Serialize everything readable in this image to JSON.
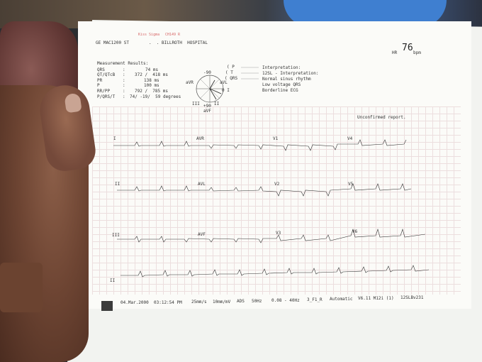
{
  "header": {
    "device": "GE MAC1200 ST",
    "dots": ".  .",
    "hospital": "BILLROTH  HOSPITAL",
    "logo_left": "Kiss Sigma",
    "logo_right": "CH149 R",
    "hr_label": "HR",
    "hr_value": "76",
    "hr_unit": "bpm"
  },
  "measurements": {
    "title": "Measurement Results:",
    "rows": [
      {
        "label": "QRS",
        "sep": ":",
        "value": "74 ms"
      },
      {
        "label": "QT/QTcB",
        "sep": ":",
        "value": "372 /  418 ms"
      },
      {
        "label": "PR",
        "sep": ":",
        "value": "138 ms"
      },
      {
        "label": "P",
        "sep": ":",
        "value": "100 ms"
      },
      {
        "label": "RR/PP",
        "sep": ":",
        "value": "792 /  785 ms"
      },
      {
        "label": "P/QRS/T",
        "sep": ":",
        "value": "74/ -19/  59 degrees"
      }
    ]
  },
  "axis": {
    "top": "-90",
    "avr": "aVR",
    "avl": "aVL",
    "lead1": "0 I",
    "lead3": "III",
    "lead2": "II",
    "bottom": "+90",
    "avf": "aVF",
    "legend": [
      "P",
      "T",
      "QRS"
    ]
  },
  "interpretation": {
    "title": "Interpretation:",
    "lines": [
      "12SL - Interpretation:",
      "Normal sinus rhythm",
      "Low voltage QRS",
      "Borderline ECG"
    ],
    "unconfirmed": "Unconfirmed report."
  },
  "leads": {
    "row1": [
      "I",
      "AVR",
      "V1",
      "V4"
    ],
    "row2": [
      "II",
      "AVL",
      "V2",
      "V5"
    ],
    "row3": [
      "III",
      "AVF",
      "V3",
      "V6"
    ],
    "row4": [
      "II"
    ]
  },
  "footer": {
    "date": "04.Mar.2000",
    "time": "03:12:54 PM",
    "speed": "25mm/s",
    "gain": "10mm/mV",
    "ads": "ADS",
    "mains": "50Hz",
    "filter": "0.08 - 40Hz",
    "format": "3_F1_R",
    "mode": "Automatic",
    "version": "V6.11 M12i (1)",
    "program": "12SLBv231"
  },
  "colors": {
    "paper": "#fbfbf8",
    "grid": "#ecdede",
    "trace": "#333333",
    "skin": "#74493a"
  }
}
